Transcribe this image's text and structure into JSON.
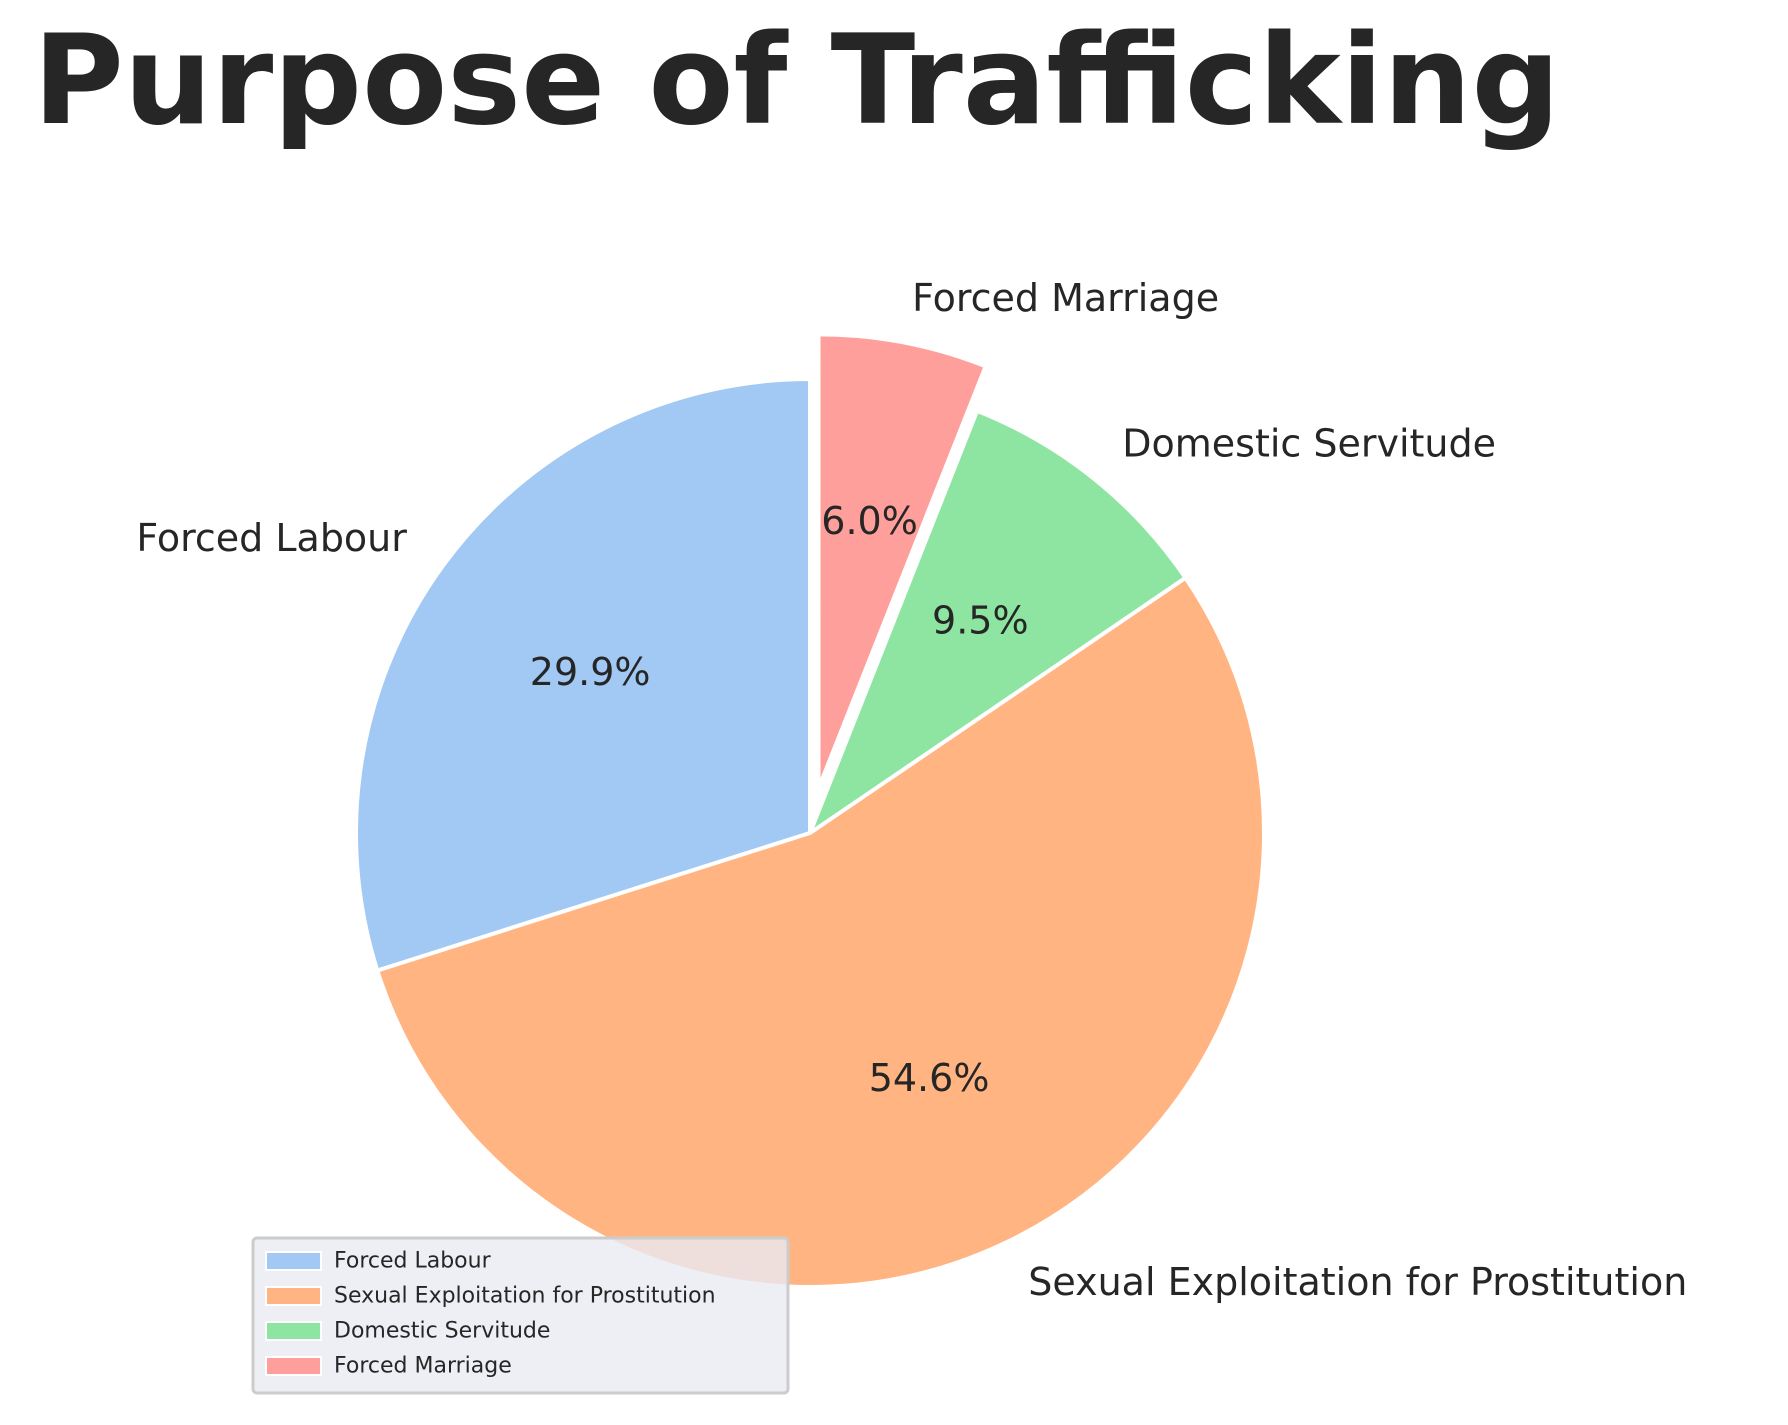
{
  "chart_data": {
    "type": "pie",
    "title": "Purpose of Trafficking",
    "categories": [
      "Forced Labour",
      "Sexual Exploitation for Prostitution",
      "Domestic Servitude",
      "Forced Marriage"
    ],
    "values": [
      29.9,
      54.6,
      9.5,
      6.0
    ],
    "percent_labels": [
      "29.9%",
      "54.6%",
      "9.5%",
      "6.0%"
    ],
    "colors": [
      "#a1c9f4",
      "#ffb482",
      "#8de5a1",
      "#ff9f9b"
    ],
    "exploded": [
      "Forced Marriage"
    ],
    "start_angle_deg": 90,
    "direction": "counterclockwise",
    "legend": {
      "entries": [
        "Forced Labour",
        "Sexual Exploitation for Prostitution",
        "Domestic Servitude",
        "Forced Marriage"
      ],
      "placement": "lower-left"
    }
  }
}
